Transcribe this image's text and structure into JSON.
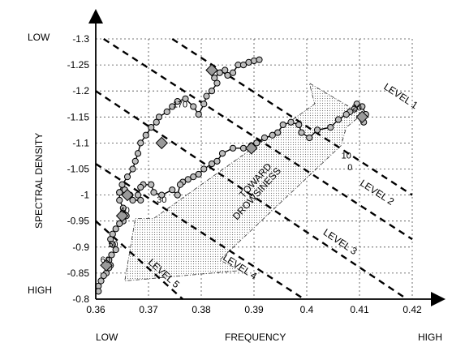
{
  "chart_data": {
    "type": "scatter",
    "title": "",
    "xlabel": "FREQUENCY",
    "ylabel": "SPECTRAL DENSITY",
    "x_low_label": "LOW",
    "x_high_label": "HIGH",
    "y_low_label": "LOW",
    "y_high_label": "HIGH",
    "xlim": [
      0.36,
      0.42
    ],
    "ylim": [
      -0.8,
      -1.3
    ],
    "xticks": [
      "0.36",
      "0.37",
      "0.38",
      "0.39",
      "0.4",
      "0.41",
      "0.42"
    ],
    "yticks": [
      "-0.8",
      "-0.85",
      "-0.9",
      "-0.95",
      "-1",
      "-1.05",
      "-1.1",
      "-1.15",
      "-1.2",
      "-1.25",
      "-1.3"
    ],
    "grid": true,
    "trajectory": [
      [
        0.4108,
        -1.14
      ],
      [
        0.4112,
        -1.155
      ],
      [
        0.4105,
        -1.17
      ],
      [
        0.4095,
        -1.175
      ],
      [
        0.409,
        -1.165
      ],
      [
        0.4082,
        -1.16
      ],
      [
        0.4075,
        -1.155
      ],
      [
        0.406,
        -1.145
      ],
      [
        0.4045,
        -1.13
      ],
      [
        0.402,
        -1.125
      ],
      [
        0.4005,
        -1.11
      ],
      [
        0.399,
        -1.12
      ],
      [
        0.3985,
        -1.135
      ],
      [
        0.397,
        -1.14
      ],
      [
        0.3955,
        -1.135
      ],
      [
        0.3945,
        -1.12
      ],
      [
        0.3935,
        -1.115
      ],
      [
        0.392,
        -1.11
      ],
      [
        0.3905,
        -1.1
      ],
      [
        0.3895,
        -1.095
      ],
      [
        0.388,
        -1.09
      ],
      [
        0.386,
        -1.09
      ],
      [
        0.384,
        -1.08
      ],
      [
        0.383,
        -1.065
      ],
      [
        0.382,
        -1.06
      ],
      [
        0.3805,
        -1.05
      ],
      [
        0.3795,
        -1.04
      ],
      [
        0.3785,
        -1.035
      ],
      [
        0.3775,
        -1.03
      ],
      [
        0.3765,
        -1.025
      ],
      [
        0.376,
        -1.02
      ],
      [
        0.3755,
        -1.0
      ],
      [
        0.3745,
        -1.01
      ],
      [
        0.3725,
        -1.0
      ],
      [
        0.371,
        -1.005
      ],
      [
        0.3705,
        -1.02
      ],
      [
        0.369,
        -1.02
      ],
      [
        0.3685,
        -1.015
      ],
      [
        0.368,
        -1.0
      ],
      [
        0.3685,
        -0.99
      ],
      [
        0.367,
        -0.99
      ],
      [
        0.3665,
        -1.0
      ],
      [
        0.3655,
        -1.01
      ],
      [
        0.3645,
        -1.005
      ],
      [
        0.3645,
        -0.99
      ],
      [
        0.3652,
        -0.975
      ],
      [
        0.3658,
        -0.96
      ],
      [
        0.3652,
        -0.95
      ],
      [
        0.3645,
        -0.945
      ],
      [
        0.3638,
        -0.935
      ],
      [
        0.3632,
        -0.925
      ],
      [
        0.3628,
        -0.915
      ],
      [
        0.3632,
        -0.905
      ],
      [
        0.3638,
        -0.895
      ],
      [
        0.363,
        -0.885
      ],
      [
        0.3625,
        -0.875
      ],
      [
        0.3628,
        -0.865
      ],
      [
        0.3625,
        -0.86
      ],
      [
        0.362,
        -0.85
      ],
      [
        0.3615,
        -0.845
      ],
      [
        0.361,
        -0.835
      ],
      [
        0.3605,
        -0.825
      ],
      [
        0.3605,
        -0.815
      ]
    ],
    "upper_trajectory": [
      [
        0.3645,
        -1.005
      ],
      [
        0.365,
        -1.02
      ],
      [
        0.366,
        -1.035
      ],
      [
        0.367,
        -1.05
      ],
      [
        0.3675,
        -1.065
      ],
      [
        0.368,
        -1.08
      ],
      [
        0.3685,
        -1.1
      ],
      [
        0.3695,
        -1.115
      ],
      [
        0.3705,
        -1.13
      ],
      [
        0.3715,
        -1.14
      ],
      [
        0.372,
        -1.15
      ],
      [
        0.3735,
        -1.16
      ],
      [
        0.3745,
        -1.17
      ],
      [
        0.3755,
        -1.18
      ],
      [
        0.377,
        -1.185
      ],
      [
        0.3785,
        -1.17
      ],
      [
        0.3795,
        -1.155
      ],
      [
        0.3805,
        -1.175
      ],
      [
        0.381,
        -1.19
      ],
      [
        0.382,
        -1.2
      ],
      [
        0.383,
        -1.215
      ],
      [
        0.3825,
        -1.225
      ],
      [
        0.3835,
        -1.235
      ],
      [
        0.3845,
        -1.24
      ],
      [
        0.385,
        -1.23
      ],
      [
        0.386,
        -1.235
      ],
      [
        0.387,
        -1.25
      ],
      [
        0.388,
        -1.25
      ],
      [
        0.389,
        -1.255
      ],
      [
        0.39,
        -1.258
      ],
      [
        0.391,
        -1.26
      ]
    ],
    "diamonds": [
      [
        0.4105,
        -1.15
      ],
      [
        0.3895,
        -1.09
      ],
      [
        0.382,
        -1.24
      ],
      [
        0.3725,
        -1.1
      ],
      [
        0.366,
        -1.0
      ],
      [
        0.365,
        -0.96
      ],
      [
        0.362,
        -0.865
      ]
    ],
    "point_labels": [
      {
        "text": "20",
        "x": 0.4095,
        "y": -1.162
      },
      {
        "text": "10",
        "x": 0.4075,
        "y": -1.07
      },
      {
        "text": "0",
        "x": 0.4082,
        "y": -1.048
      },
      {
        "text": "170",
        "x": 0.376,
        "y": -1.168
      },
      {
        "text": "30",
        "x": 0.3725,
        "y": -0.985
      },
      {
        "text": "40",
        "x": 0.3655,
        "y": -0.965
      },
      {
        "text": "50",
        "x": 0.3633,
        "y": -0.9
      },
      {
        "text": "60",
        "x": 0.3618,
        "y": -0.87
      }
    ],
    "level_lines": [
      {
        "label": "LEVEL 1",
        "label_x": 0.4175,
        "label_y": -1.185,
        "x1": 0.3745,
        "y1": -1.3,
        "x2": 0.42,
        "y2": -1.0
      },
      {
        "label": "LEVEL 2",
        "label_x": 0.413,
        "label_y": -1.0,
        "x1": 0.3615,
        "y1": -1.3,
        "x2": 0.42,
        "y2": -0.915
      },
      {
        "label": "LEVEL 3",
        "label_x": 0.406,
        "label_y": -0.905,
        "x1": 0.36,
        "y1": -1.2,
        "x2": 0.419,
        "y2": -0.8
      },
      {
        "label": "LEVEL 4",
        "label_x": 0.387,
        "label_y": -0.857,
        "x1": 0.36,
        "y1": -1.06,
        "x2": 0.3995,
        "y2": -0.8
      },
      {
        "label": "LEVEL 5",
        "label_x": 0.3725,
        "label_y": -0.845,
        "x1": 0.36,
        "y1": -0.95,
        "x2": 0.3765,
        "y2": -0.8
      }
    ],
    "arrow": {
      "label_line1": "TOWARD",
      "label_line2": "DROWSINESS",
      "polygon": [
        [
          0.4105,
          -1.155
        ],
        [
          0.4005,
          -1.215
        ],
        [
          0.4015,
          -1.175
        ],
        [
          0.371,
          -0.955
        ],
        [
          0.3675,
          -0.955
        ],
        [
          0.3655,
          -0.835
        ],
        [
          0.3875,
          -0.855
        ],
        [
          0.3835,
          -0.875
        ],
        [
          0.4065,
          -1.095
        ],
        [
          0.4075,
          -1.13
        ]
      ]
    }
  }
}
